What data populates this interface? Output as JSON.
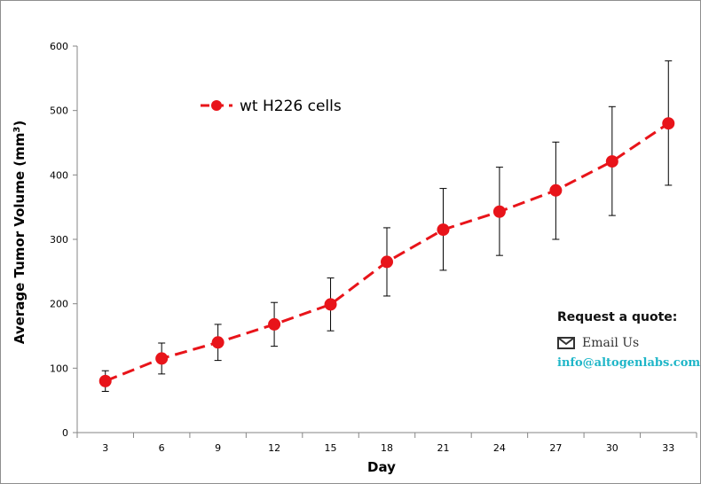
{
  "chart_data": {
    "type": "line",
    "xlabel": "Day",
    "ylabel_main": "Average Tumor Volume (mm",
    "ylabel_sup": "3",
    "ylabel_end": ")",
    "ylim": [
      0,
      600
    ],
    "y_ticks": [
      0,
      100,
      200,
      300,
      400,
      500,
      600
    ],
    "categories": [
      "3",
      "6",
      "9",
      "12",
      "15",
      "18",
      "21",
      "24",
      "27",
      "30",
      "33"
    ],
    "series": [
      {
        "name": "wt H226 cells",
        "color": "#e8141a",
        "line_style": "dashed",
        "values": [
          80,
          115,
          140,
          168,
          199,
          265,
          315,
          343,
          376,
          421,
          480
        ],
        "error_upper": [
          96,
          139,
          168,
          202,
          240,
          318,
          379,
          412,
          451,
          506,
          577
        ],
        "error_lower": [
          64,
          91,
          112,
          134,
          158,
          212,
          252,
          275,
          300,
          337,
          384
        ]
      }
    ],
    "legend_position": "top-left",
    "grid": false
  },
  "quote": {
    "title": "Request a quote:",
    "email_label": "Email Us",
    "email_address": "info@altogenlabs.com",
    "email_color": "#1fb6c8",
    "icon": "envelope-icon"
  }
}
